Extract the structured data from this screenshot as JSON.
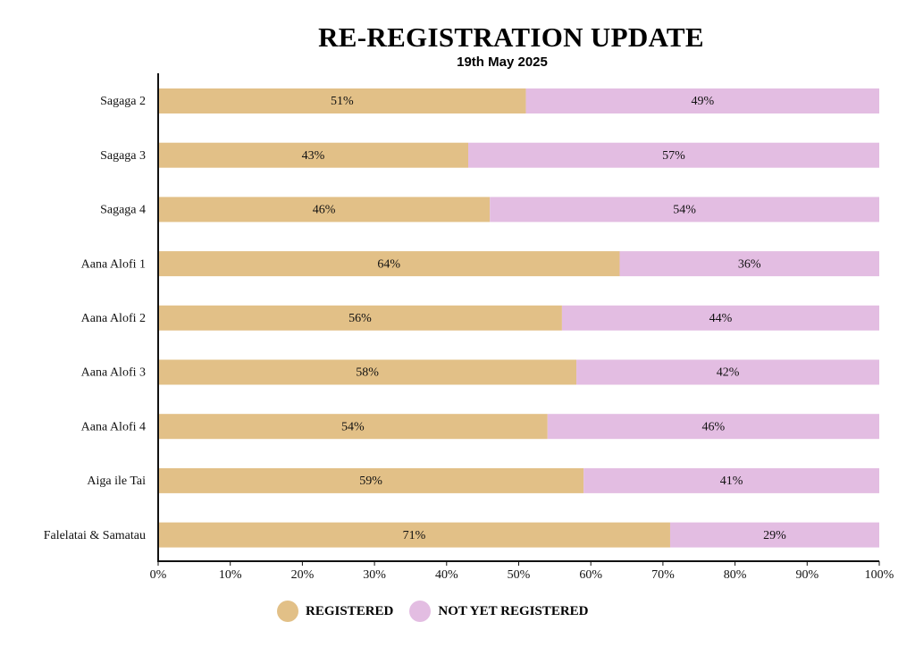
{
  "title": "RE-REGISTRATION UPDATE",
  "subtitle": "19th May 2025",
  "colors": {
    "registered": "#E2C087",
    "not_registered": "#E3BDE2"
  },
  "chart_data": {
    "type": "bar",
    "orientation": "horizontal",
    "stacked": true,
    "title": "RE-REGISTRATION UPDATE",
    "subtitle": "19th May 2025",
    "categories": [
      "Sagaga 2",
      "Sagaga 3",
      "Sagaga 4",
      "Aana Alofi 1",
      "Aana Alofi 2",
      "Aana Alofi 3",
      "Aana Alofi 4",
      "Aiga ile Tai",
      "Falelatai & Samatau"
    ],
    "series": [
      {
        "name": "REGISTERED",
        "values": [
          51,
          43,
          46,
          64,
          56,
          58,
          54,
          59,
          71
        ],
        "labels": [
          "51%",
          "43%",
          "46%",
          "64%",
          "56%",
          "58%",
          "54%",
          "59%",
          "71%"
        ]
      },
      {
        "name": "NOT YET REGISTERED",
        "values": [
          49,
          57,
          54,
          36,
          44,
          42,
          46,
          41,
          29
        ],
        "labels": [
          "49%",
          "57%",
          "54%",
          "36%",
          "44%",
          "42%",
          "46%",
          "41%",
          "29%"
        ]
      }
    ],
    "xlim": [
      0,
      100
    ],
    "xticks": [
      "0%",
      "10%",
      "20%",
      "30%",
      "40%",
      "50%",
      "60%",
      "70%",
      "80%",
      "90%",
      "100%"
    ],
    "grid": false,
    "legend_position": "bottom-center"
  }
}
